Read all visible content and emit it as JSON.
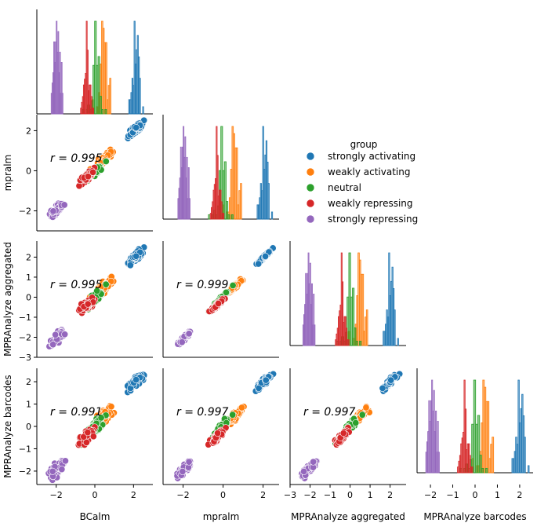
{
  "chart_data": {
    "type": "pairplot",
    "variables": [
      "BCalm",
      "mpralm",
      "MPRAnalyze aggregated",
      "MPRAnalyze barcodes"
    ],
    "axes_ranges": [
      [
        -3.0,
        3.0
      ],
      [
        -3.0,
        2.8
      ],
      [
        -3.0,
        2.8
      ],
      [
        -2.6,
        2.6
      ]
    ],
    "ticks": [
      [
        -2,
        0,
        2
      ],
      [
        -2,
        0,
        2
      ],
      [
        -3,
        -2,
        -1,
        0,
        1,
        2
      ],
      [
        -2,
        -1,
        0,
        1,
        2
      ]
    ],
    "tick_labels": [
      [
        "−2",
        "0",
        "2"
      ],
      [
        "−2",
        "0",
        "2"
      ],
      [
        "−3",
        "−2",
        "−1",
        "0",
        "1",
        "2"
      ],
      [
        "−2",
        "−1",
        "0",
        "1",
        "2"
      ]
    ],
    "x_axis_labels": [
      "BCalm",
      "mpralm",
      "MPRAnalyze aggregated",
      "MPRAnalyze barcodes"
    ],
    "y_axis_labels": [
      "mpralm",
      "MPRAnalyze aggregated",
      "MPRAnalyze barcodes"
    ],
    "correlations": [
      {
        "row": 1,
        "col": 0,
        "label": "r = 0.995"
      },
      {
        "row": 2,
        "col": 0,
        "label": "r = 0.995"
      },
      {
        "row": 2,
        "col": 1,
        "label": "r = 0.999"
      },
      {
        "row": 3,
        "col": 0,
        "label": "r = 0.991"
      },
      {
        "row": 3,
        "col": 1,
        "label": "r = 0.997"
      },
      {
        "row": 3,
        "col": 2,
        "label": "r = 0.997"
      }
    ],
    "legend": {
      "title": "group",
      "placement": "right",
      "entries": [
        {
          "name": "strongly activating",
          "color": "#1f77b4"
        },
        {
          "name": "weakly activating",
          "color": "#ff7f0e"
        },
        {
          "name": "neutral",
          "color": "#2ca02c"
        },
        {
          "name": "weakly repressing",
          "color": "#d62728"
        },
        {
          "name": "strongly repressing",
          "color": "#9467bd"
        }
      ]
    },
    "group_centers": [
      [
        2.1,
        0.45,
        0.05,
        -0.45,
        -1.95
      ],
      [
        2.05,
        0.55,
        -0.05,
        -0.35,
        -1.95
      ],
      [
        2.0,
        0.5,
        0.0,
        -0.45,
        -2.05
      ],
      [
        2.0,
        0.45,
        0.0,
        -0.5,
        -1.9
      ]
    ],
    "group_sd": 0.17,
    "scatter_spread": [
      [
        0,
        0.12,
        0.14,
        0.17
      ],
      [
        0.12,
        0,
        0.05,
        0.1
      ],
      [
        0.14,
        0.05,
        0,
        0.1
      ],
      [
        0.17,
        0.1,
        0.1,
        0
      ]
    ],
    "histogram_bins": 14
  }
}
